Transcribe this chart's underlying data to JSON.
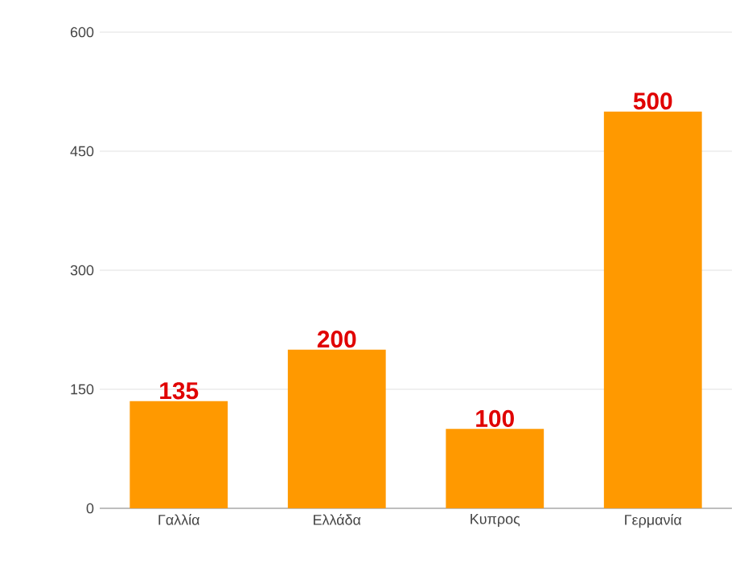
{
  "chart_data": {
    "type": "bar",
    "categories": [
      "Γαλλία",
      "Ελλάδα",
      "Κυπρος",
      "Γερμανία"
    ],
    "values": [
      135,
      200,
      100,
      500
    ],
    "color": "#ff9900",
    "data_labels": true,
    "ylim": [
      0,
      600
    ],
    "yticks": [
      0,
      150,
      300,
      450,
      600
    ],
    "grid": "y"
  }
}
